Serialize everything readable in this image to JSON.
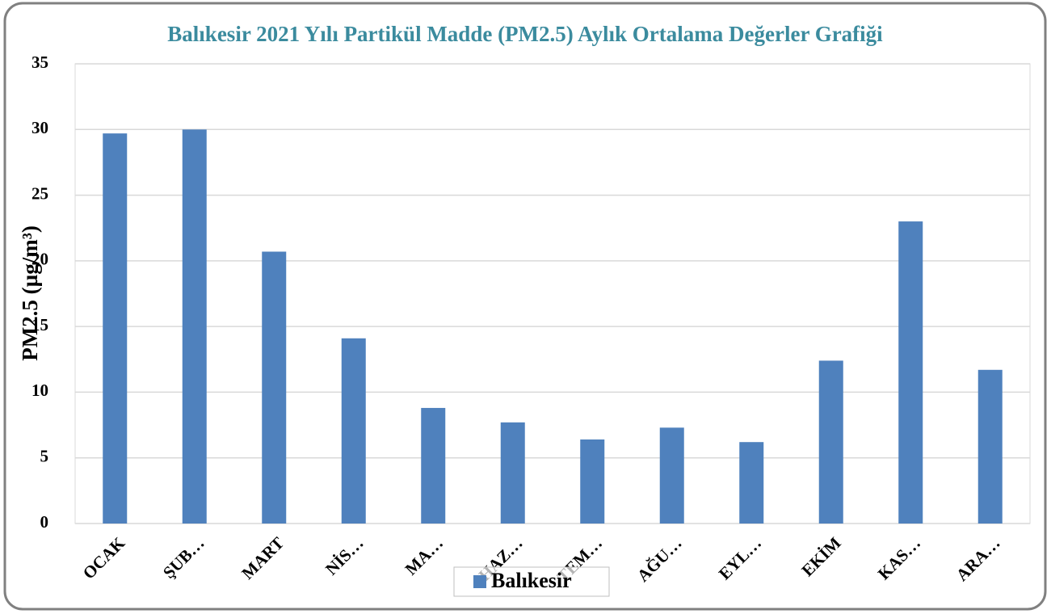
{
  "chart_data": {
    "type": "bar",
    "title": "Balıkesir 2021 Yılı Partikül Madde (PM2.5) Aylık Ortalama Değerler Grafiği",
    "y_label": "PM2.5 (µg/m³)",
    "categories": [
      "OCAK",
      "ŞUB…",
      "MART",
      "NİS…",
      "MA…",
      "HAZ…",
      "TEM…",
      "AĞU…",
      "EYL…",
      "EKİM",
      "KAS…",
      "ARA…"
    ],
    "series": [
      {
        "name": "Balıkesir",
        "color": "#4f81bd",
        "values": [
          29.7,
          30.0,
          20.7,
          14.1,
          8.8,
          7.7,
          6.4,
          7.3,
          6.2,
          12.4,
          23.0,
          11.7
        ]
      }
    ],
    "ylim": [
      0,
      35
    ],
    "yticks": [
      0,
      5,
      10,
      15,
      20,
      25,
      30,
      35
    ],
    "grid": true,
    "legend": "bottom"
  }
}
